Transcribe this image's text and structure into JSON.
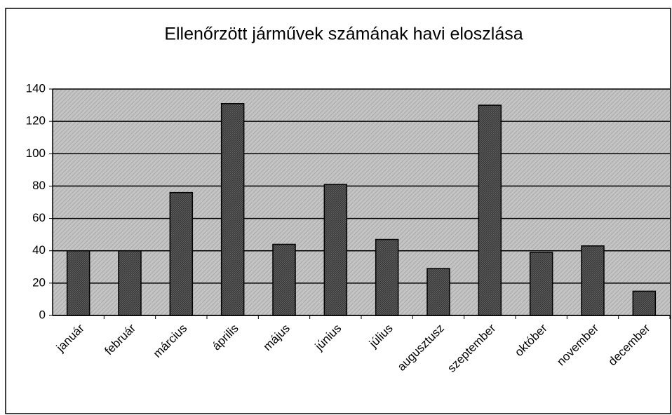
{
  "chart_data": {
    "type": "bar",
    "title": "Ellenőrzött járművek számának havi eloszlása",
    "categories": [
      "január",
      "február",
      "március",
      "április",
      "május",
      "június",
      "július",
      "augusztusz",
      "szeptember",
      "október",
      "november",
      "december"
    ],
    "values": [
      40,
      40,
      76,
      131,
      44,
      81,
      47,
      29,
      130,
      39,
      43,
      15
    ],
    "color": "#3a3a3a",
    "ylim": [
      0,
      140
    ],
    "yticks": [
      0,
      20,
      40,
      60,
      80,
      100,
      120,
      140
    ],
    "grid": true
  }
}
